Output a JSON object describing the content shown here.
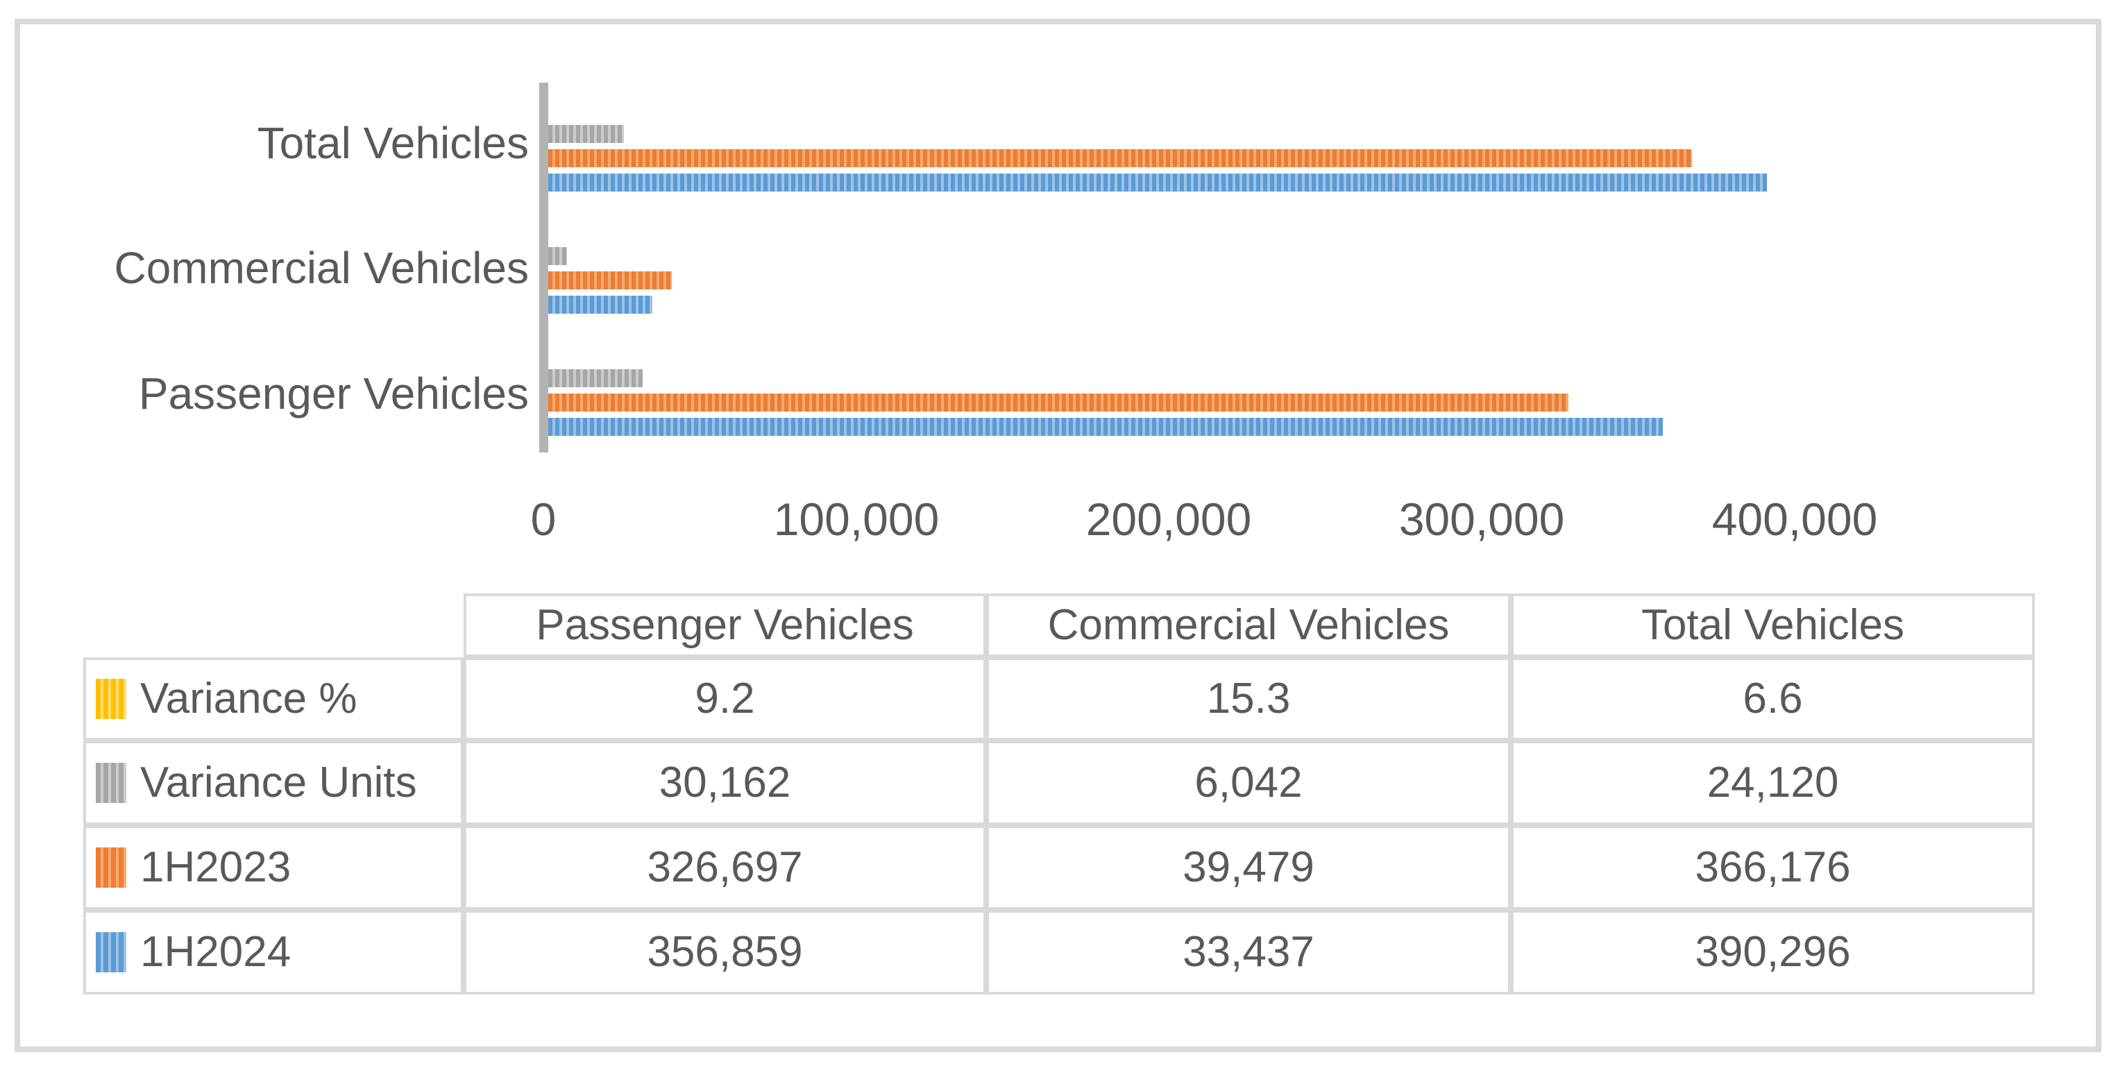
{
  "frame": {
    "border_color": "#D9D9D9",
    "background": "#ffffff"
  },
  "chart_data": {
    "type": "bar",
    "orientation": "horizontal",
    "title": "",
    "xlabel": "",
    "ylabel": "",
    "grid": false,
    "legend_position": "data-table-below",
    "categories": [
      "Passenger Vehicles",
      "Commercial Vehicles",
      "Total Vehicles"
    ],
    "category_axis_order_top_to_bottom": [
      "Total Vehicles",
      "Commercial Vehicles",
      "Passenger Vehicles"
    ],
    "series_order_top_to_bottom_within_group": [
      "Variance %",
      "Variance Units",
      "1H2023",
      "1H2024"
    ],
    "series": [
      {
        "name": "Variance %",
        "color": "#FFC000",
        "color_light": "#FFDD75",
        "values": [
          9.2,
          15.3,
          6.6
        ]
      },
      {
        "name": "Variance Units",
        "color": "#A6A6A6",
        "color_light": "#CCCCCC",
        "values": [
          30162,
          6042,
          24120
        ]
      },
      {
        "name": "1H2023",
        "color": "#ED7D31",
        "color_light": "#F4AA74",
        "values": [
          326697,
          39479,
          366176
        ]
      },
      {
        "name": "1H2024",
        "color": "#5B9BD5",
        "color_light": "#9CC2E5",
        "values": [
          356859,
          33437,
          390296
        ]
      }
    ],
    "xlim": [
      0,
      400000
    ],
    "x_tick_labels": [
      "0",
      "100,000",
      "200,000",
      "300,000",
      "400,000"
    ],
    "x_tick_values": [
      0,
      100000,
      200000,
      300000,
      400000
    ],
    "axis_line_color": "#B3B3B3"
  },
  "table": {
    "column_headers": [
      "Passenger Vehicles",
      "Commercial Vehicles",
      "Total Vehicles"
    ],
    "border_color": "#D9D9D9",
    "rows": [
      {
        "label": "Variance %",
        "color": "#FFC000",
        "color_light": "#FFDD75",
        "cells": [
          "9.2",
          "15.3",
          "6.6"
        ]
      },
      {
        "label": "Variance Units",
        "color": "#A6A6A6",
        "color_light": "#CCCCCC",
        "cells": [
          "30,162",
          "6,042",
          "24,120"
        ]
      },
      {
        "label": "1H2023",
        "color": "#ED7D31",
        "color_light": "#F4AA74",
        "cells": [
          "326,697",
          "39,479",
          "366,176"
        ]
      },
      {
        "label": "1H2024",
        "color": "#5B9BD5",
        "color_light": "#9CC2E5",
        "cells": [
          "356,859",
          "33,437",
          "390,296"
        ]
      }
    ]
  }
}
